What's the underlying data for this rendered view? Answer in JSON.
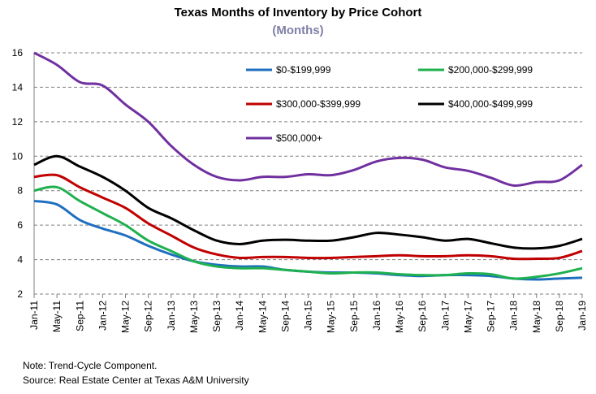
{
  "chart_data": {
    "type": "line",
    "title": "Texas Months of Inventory by Price Cohort",
    "subtitle": "(Months)",
    "categories": [
      "Jan-11",
      "May-11",
      "Sep-11",
      "Jan-12",
      "May-12",
      "Sep-12",
      "Jan-13",
      "May-13",
      "Sep-13",
      "Jan-14",
      "May-14",
      "Sep-14",
      "Jan-15",
      "May-15",
      "Sep-15",
      "Jan-16",
      "May-16",
      "Sep-16",
      "Jan-17",
      "May-17",
      "Sep-17",
      "Jan-18",
      "May-18",
      "Sep-18",
      "Jan-19"
    ],
    "series": [
      {
        "name": "$0-$199,999",
        "color": "#1f6fc0",
        "values": [
          7.4,
          7.2,
          6.3,
          5.8,
          5.4,
          4.8,
          4.3,
          3.9,
          3.7,
          3.6,
          3.6,
          3.4,
          3.3,
          3.25,
          3.25,
          3.2,
          3.1,
          3.05,
          3.1,
          3.1,
          3.05,
          2.9,
          2.85,
          2.9,
          2.95
        ]
      },
      {
        "name": "$200,000-$299,999",
        "color": "#1fb04f",
        "values": [
          8.0,
          8.2,
          7.4,
          6.7,
          6.0,
          5.1,
          4.5,
          3.9,
          3.6,
          3.5,
          3.5,
          3.4,
          3.3,
          3.2,
          3.25,
          3.25,
          3.15,
          3.1,
          3.1,
          3.2,
          3.15,
          2.9,
          3.0,
          3.2,
          3.5
        ]
      },
      {
        "name": "$300,000-$399,999",
        "color": "#c00000",
        "values": [
          8.8,
          8.9,
          8.2,
          7.6,
          7.0,
          6.1,
          5.4,
          4.7,
          4.3,
          4.1,
          4.15,
          4.15,
          4.1,
          4.1,
          4.15,
          4.2,
          4.25,
          4.2,
          4.2,
          4.25,
          4.2,
          4.05,
          4.05,
          4.1,
          4.5
        ]
      },
      {
        "name": "$400,000-$499,999",
        "color": "#000000",
        "values": [
          9.5,
          10.0,
          9.4,
          8.8,
          8.0,
          7.0,
          6.4,
          5.7,
          5.1,
          4.9,
          5.1,
          5.15,
          5.1,
          5.1,
          5.3,
          5.55,
          5.45,
          5.3,
          5.1,
          5.2,
          4.95,
          4.7,
          4.65,
          4.8,
          5.2
        ]
      },
      {
        "name": "$500,000+",
        "color": "#7030a0",
        "values": [
          16.0,
          15.3,
          14.3,
          14.1,
          13.0,
          12.0,
          10.6,
          9.5,
          8.8,
          8.6,
          8.8,
          8.8,
          8.95,
          8.9,
          9.2,
          9.7,
          9.9,
          9.8,
          9.35,
          9.15,
          8.75,
          8.3,
          8.5,
          8.6,
          9.5
        ]
      }
    ],
    "ylim": [
      2,
      16
    ],
    "yticks": [
      2,
      4,
      6,
      8,
      10,
      12,
      14,
      16
    ],
    "grid": true,
    "notes": [
      "Note: Trend-Cycle Component.",
      "Source: Real Estate Center at Texas A&M University"
    ]
  }
}
